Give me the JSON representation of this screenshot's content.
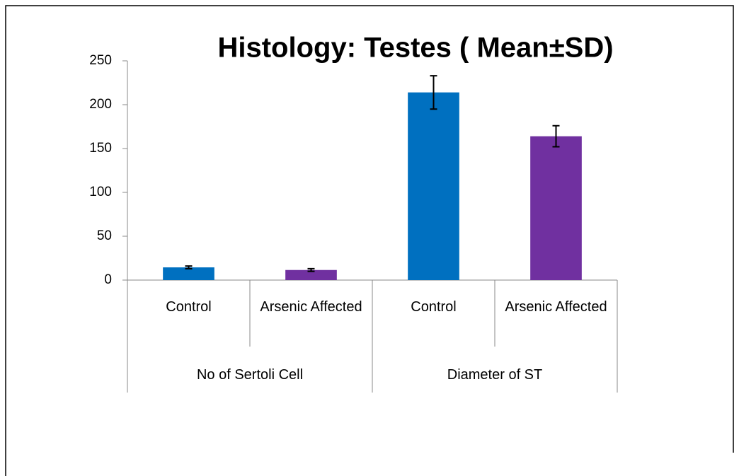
{
  "chart_data": {
    "type": "bar",
    "title": "Histology: Testes ( Mean±SD)",
    "groups": [
      {
        "name": "No of Sertoli Cell",
        "categories": [
          "Control",
          "Arsenic Affected"
        ],
        "values": [
          14.5,
          11.5
        ],
        "errors": [
          1.5,
          1.5
        ]
      },
      {
        "name": "Diameter of ST",
        "categories": [
          "Control",
          "Arsenic Affected"
        ],
        "values": [
          214,
          164
        ],
        "errors": [
          19,
          12
        ]
      }
    ],
    "colors": [
      "#0070c0",
      "#7030a0"
    ],
    "ylim": [
      0,
      250
    ],
    "yticks": [
      0,
      50,
      100,
      150,
      200,
      250
    ],
    "grid": false
  }
}
